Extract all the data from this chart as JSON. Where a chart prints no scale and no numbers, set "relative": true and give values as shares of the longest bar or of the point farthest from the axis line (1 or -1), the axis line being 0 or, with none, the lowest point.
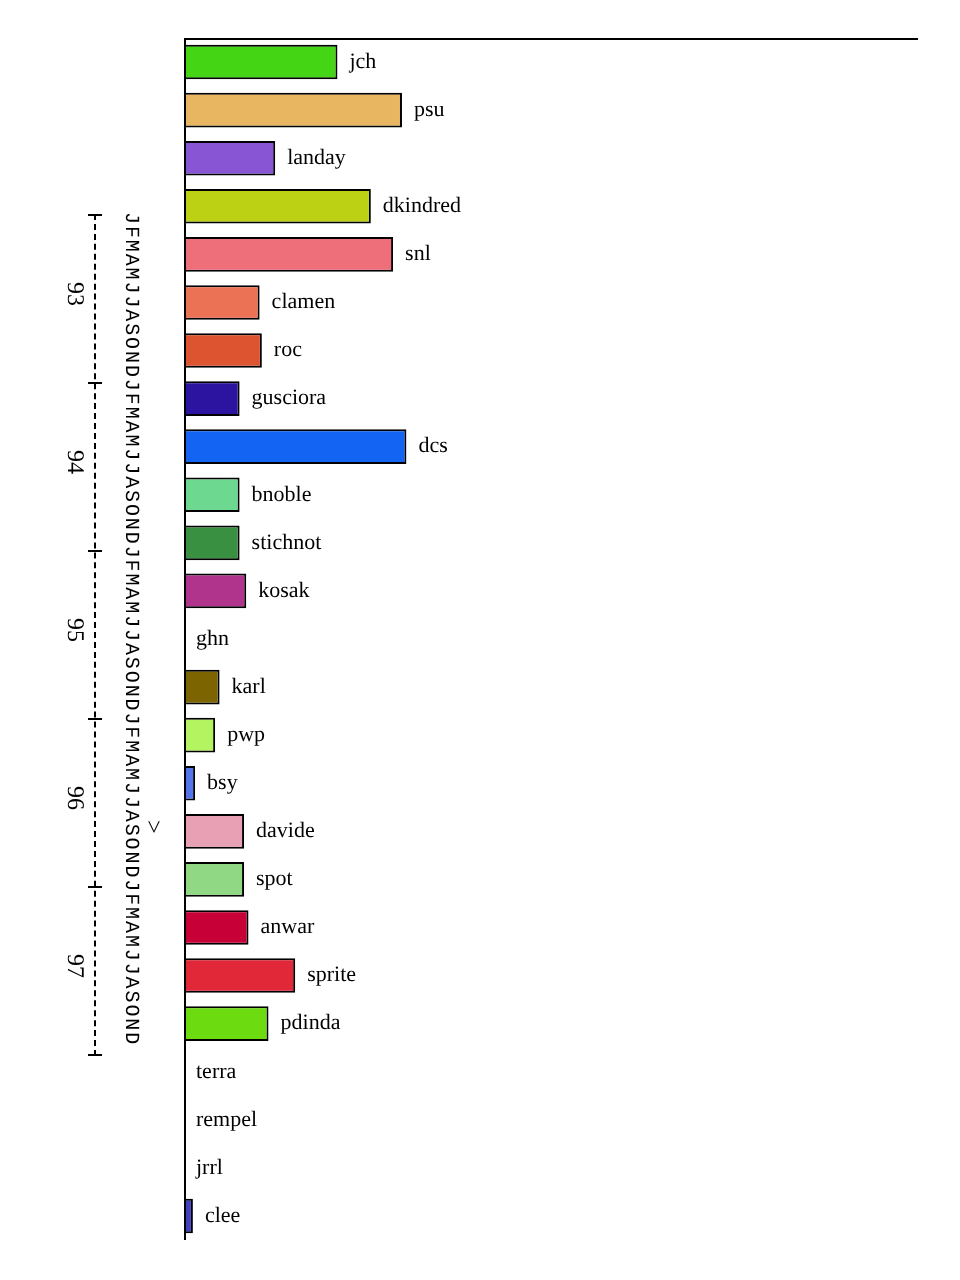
{
  "chart_data": {
    "type": "bar",
    "orientation": "horizontal",
    "relative": true,
    "categories": [
      "jch",
      "psu",
      "landay",
      "dkindred",
      "snl",
      "clamen",
      "roc",
      "gusciora",
      "dcs",
      "bnoble",
      "stichnot",
      "kosak",
      "ghn",
      "karl",
      "pwp",
      "bsy",
      "davide",
      "spot",
      "anwar",
      "sprite",
      "pdinda",
      "terra",
      "rempel",
      "jrrl",
      "clee"
    ],
    "values": [
      0.69,
      0.98,
      0.41,
      0.84,
      0.94,
      0.34,
      0.35,
      0.25,
      1,
      0.25,
      0.25,
      0.28,
      0,
      0.16,
      0.14,
      0.05,
      0.27,
      0.27,
      0.29,
      0.5,
      0.38,
      0,
      0,
      0,
      0.04
    ],
    "colors": [
      "#44d614",
      "#e8b560",
      "#8855d4",
      "#bcd014",
      "#ee6e7a",
      "#ec7255",
      "#dc5530",
      "#2c14a0",
      "#1464f4",
      "#6cd890",
      "#389040",
      "#b0348c",
      "#ffffff",
      "#7c6400",
      "#b4f460",
      "#5474ec",
      "#e8a0b4",
      "#90d884",
      "#c80038",
      "#e02838",
      "#6cdc10",
      "#ffffff",
      "#ffffff",
      "#ffffff",
      "#4040c0"
    ],
    "annotations": [
      "93",
      "94",
      "95",
      "96",
      "97",
      "JFMAMJJASONDJFMAMJJASONDJFMAMJJASONDJFMAMJJASONDJFMAMJJASOND",
      ">"
    ],
    "legend": false
  }
}
